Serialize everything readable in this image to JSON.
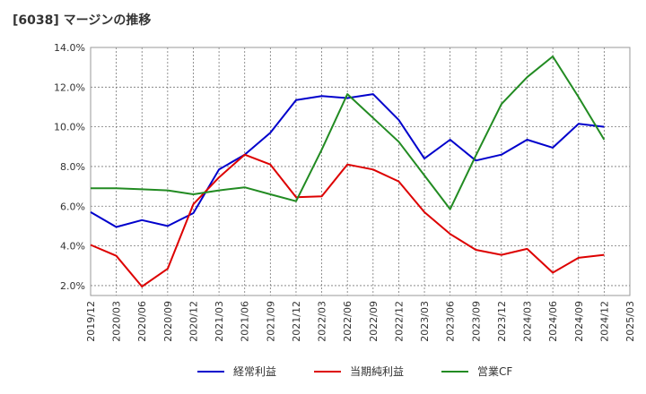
{
  "chart_data": {
    "type": "line",
    "title": "[6038]  マージンの推移",
    "xlabel": "",
    "ylabel": "",
    "ylim": [
      1.5,
      14.0
    ],
    "yticks": [
      2.0,
      4.0,
      6.0,
      8.0,
      10.0,
      12.0,
      14.0
    ],
    "ytick_labels": [
      "2.0%",
      "4.0%",
      "6.0%",
      "8.0%",
      "10.0%",
      "12.0%",
      "14.0%"
    ],
    "grid": true,
    "legend_position": "bottom",
    "x": [
      "2019/12",
      "2020/03",
      "2020/06",
      "2020/09",
      "2020/12",
      "2021/03",
      "2021/06",
      "2021/09",
      "2021/12",
      "2022/03",
      "2022/06",
      "2022/09",
      "2022/12",
      "2023/03",
      "2023/06",
      "2023/09",
      "2023/12",
      "2024/03",
      "2024/06",
      "2024/09",
      "2024/12",
      "2025/03"
    ],
    "series": [
      {
        "name": "経常利益",
        "color": "#0000cc",
        "values": [
          5.7,
          4.95,
          5.3,
          5.0,
          5.65,
          7.85,
          8.6,
          9.7,
          11.35,
          11.55,
          11.45,
          11.65,
          10.35,
          8.4,
          9.35,
          8.3,
          8.6,
          9.35,
          8.95,
          10.15,
          10.0,
          null
        ]
      },
      {
        "name": "当期純利益",
        "color": "#dd0000",
        "values": [
          4.05,
          3.5,
          1.95,
          2.85,
          6.1,
          7.45,
          8.6,
          8.1,
          6.45,
          6.5,
          8.1,
          7.85,
          7.25,
          5.7,
          4.6,
          3.8,
          3.55,
          3.85,
          2.65,
          3.4,
          3.55,
          null
        ]
      },
      {
        "name": "営業CF",
        "color": "#228b22",
        "values": [
          6.9,
          6.9,
          6.85,
          6.8,
          6.6,
          6.8,
          6.95,
          6.6,
          6.25,
          8.85,
          11.65,
          10.45,
          9.25,
          7.55,
          5.85,
          8.55,
          11.15,
          12.5,
          13.55,
          11.5,
          9.35,
          null
        ]
      }
    ]
  }
}
